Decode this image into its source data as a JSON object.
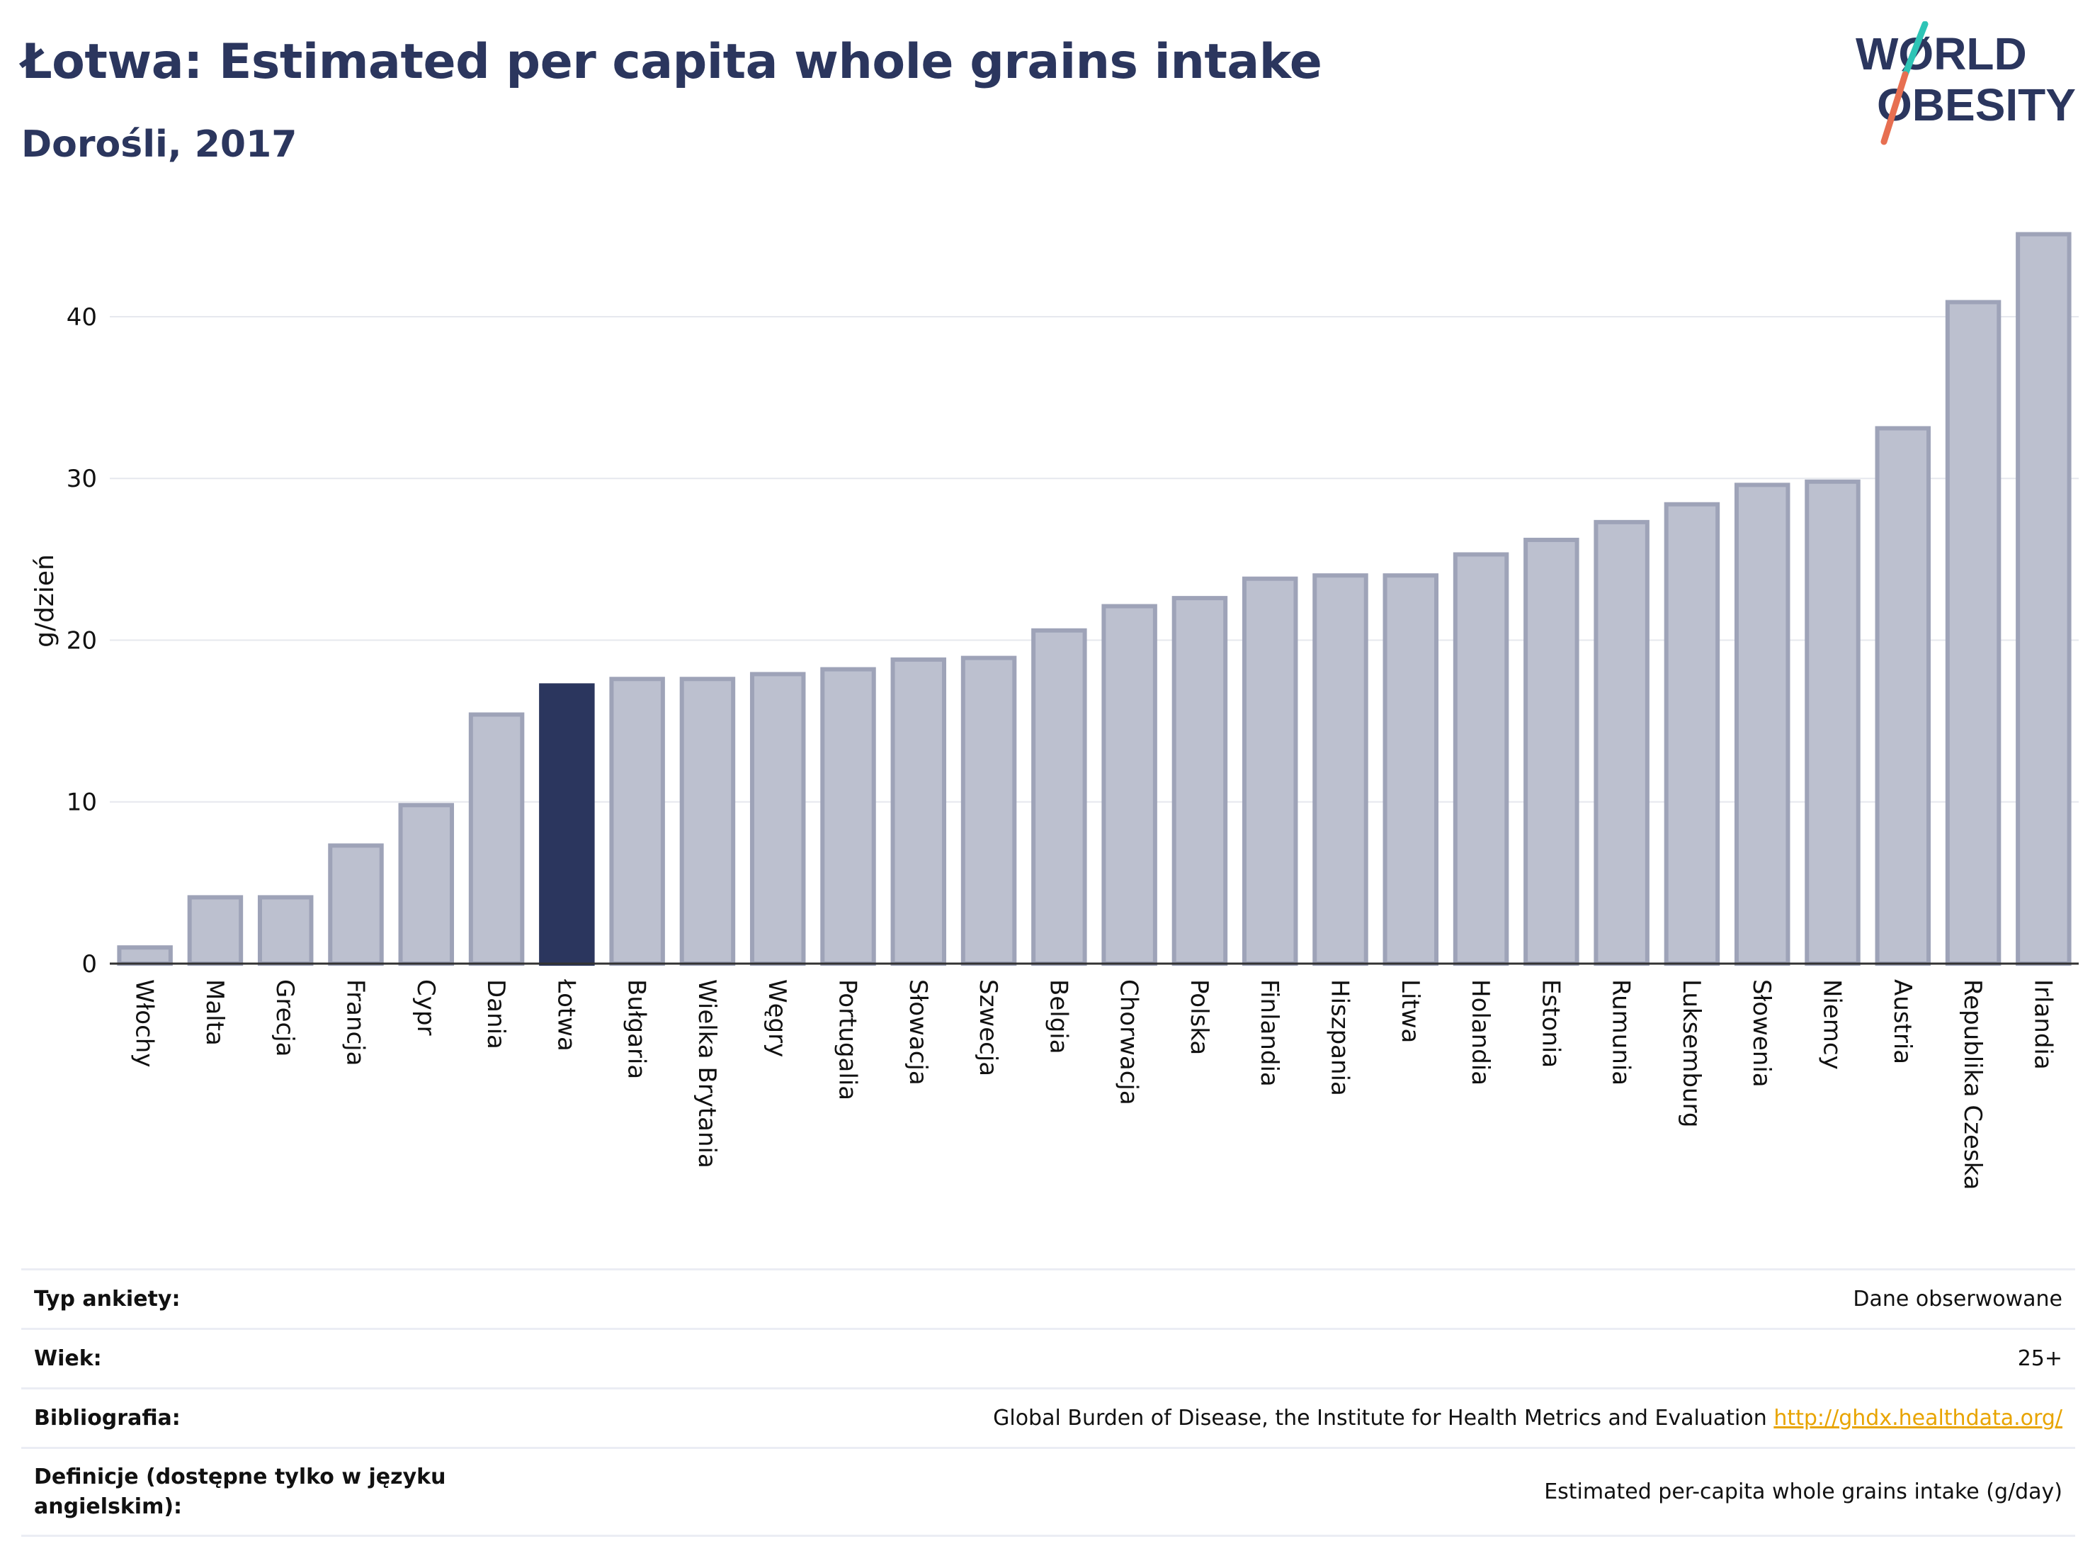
{
  "header": {
    "title": "Łotwa: Estimated per capita whole grains intake",
    "subtitle": "Dorośli, 2017"
  },
  "logo": {
    "line1": "WØRLD",
    "line2": "OBESITY",
    "text_color": "#2b365e",
    "slash_colors": [
      "#2ec4b6",
      "#e76f51"
    ]
  },
  "colors": {
    "bar_fill": "#bcc0cf",
    "bar_stroke": "#9ea3b8",
    "highlight": "#2b365e",
    "grid": "#e6e8ee",
    "axis": "#333333"
  },
  "chart_data": {
    "type": "bar",
    "title": "Łotwa: Estimated per capita whole grains intake",
    "subtitle": "Dorośli, 2017",
    "xlabel": "",
    "ylabel": "g/dzień",
    "ylim": [
      0,
      46
    ],
    "yticks": [
      0,
      10,
      20,
      30,
      40
    ],
    "grid": true,
    "highlight_category": "Łotwa",
    "categories": [
      "Włochy",
      "Malta",
      "Grecja",
      "Francja",
      "Cypr",
      "Dania",
      "Łotwa",
      "Bułgaria",
      "Wielka Brytania",
      "Węgry",
      "Portugalia",
      "Słowacja",
      "Szwecja",
      "Belgia",
      "Chorwacja",
      "Polska",
      "Finlandia",
      "Hiszpania",
      "Litwa",
      "Holandia",
      "Estonia",
      "Rumunia",
      "Luksemburg",
      "Słowenia",
      "Niemcy",
      "Austria",
      "Republika Czeska",
      "Irlandia"
    ],
    "values": [
      1.0,
      4.1,
      4.1,
      7.3,
      9.8,
      15.4,
      17.2,
      17.6,
      17.6,
      17.9,
      18.2,
      18.8,
      18.9,
      20.6,
      22.1,
      22.6,
      23.8,
      24.0,
      24.0,
      25.3,
      26.2,
      27.3,
      28.4,
      29.6,
      29.8,
      33.1,
      40.9,
      45.1
    ]
  },
  "info": [
    {
      "key": "Typ ankiety:",
      "value": "Dane obserwowane"
    },
    {
      "key": "Wiek:",
      "value": "25+"
    },
    {
      "key": "Bibliografia:",
      "value": "Global Burden of Disease, the Institute for Health Metrics and Evaluation",
      "link": "http://ghdx.healthdata.org/"
    },
    {
      "key": "Definicje (dostępne tylko w języku angielskim):",
      "value": "Estimated per-capita whole grains intake (g/day)"
    }
  ]
}
